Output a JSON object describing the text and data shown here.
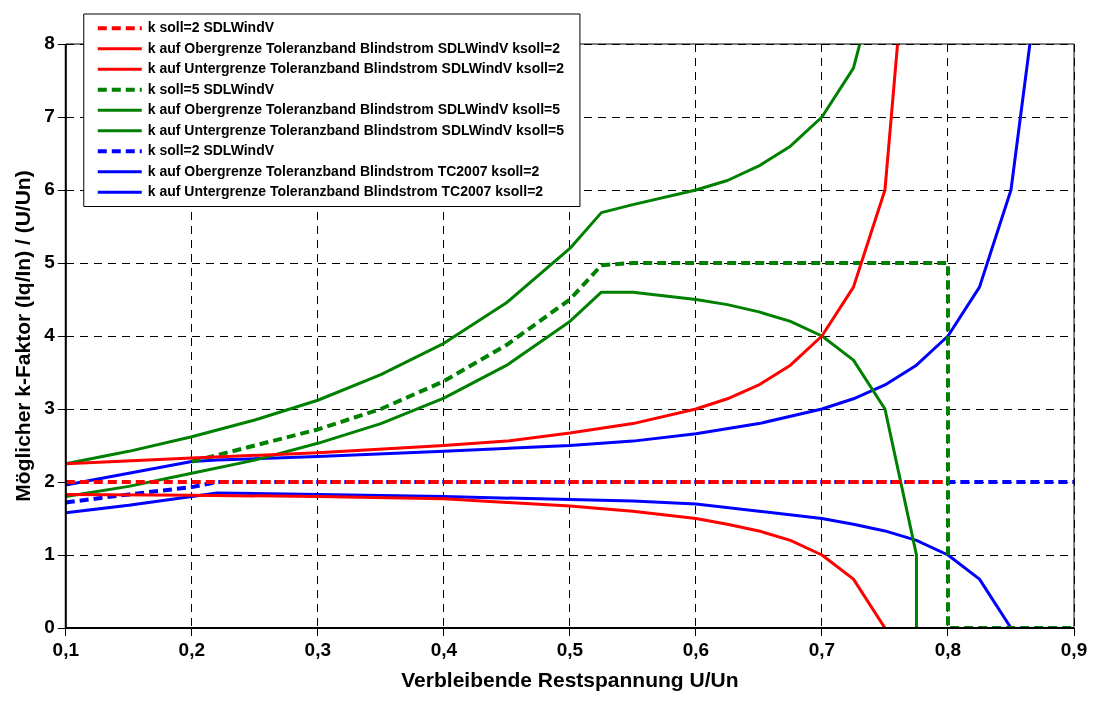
{
  "chart_data": {
    "type": "line",
    "xlabel": "Verbleibende Restspannung U/Un",
    "ylabel": "Möglicher k-Faktor (Iq/In) / (U/Un)",
    "xlim": [
      0.1,
      0.9
    ],
    "ylim": [
      0,
      8
    ],
    "xticks": [
      {
        "value": 0.1,
        "label": "0,1"
      },
      {
        "value": 0.2,
        "label": "0,2"
      },
      {
        "value": 0.3,
        "label": "0,3"
      },
      {
        "value": 0.4,
        "label": "0,4"
      },
      {
        "value": 0.5,
        "label": "0,5"
      },
      {
        "value": 0.6,
        "label": "0,6"
      },
      {
        "value": 0.7,
        "label": "0,7"
      },
      {
        "value": 0.8,
        "label": "0,8"
      },
      {
        "value": 0.9,
        "label": "0,9"
      }
    ],
    "yticks": [
      0,
      1,
      2,
      3,
      4,
      5,
      6,
      7,
      8
    ],
    "grid": true,
    "legend": "top left",
    "marker": "none",
    "series": [
      {
        "name": "k soll=2 SDLWindV",
        "color": "#ff0000",
        "line_style": "dashed",
        "x": [
          0.1,
          0.8
        ],
        "values": [
          2,
          2
        ]
      },
      {
        "name": "k auf Obergrenze Toleranzband Blindstrom SDLWindV ksoll=2",
        "color": "#ff0000",
        "line_style": "solid",
        "x": [
          0.1,
          0.2,
          0.3,
          0.4,
          0.45,
          0.5,
          0.55,
          0.6,
          0.625,
          0.65,
          0.675,
          0.7,
          0.725,
          0.75,
          0.76
        ],
        "values": [
          2.25,
          2.33,
          2.4,
          2.5,
          2.56,
          2.67,
          2.8,
          3.0,
          3.14,
          3.33,
          3.6,
          4.0,
          4.67,
          6.0,
          8.0
        ]
      },
      {
        "name": "k auf Untergrenze Toleranzband Blindstrom SDLWindV ksoll=2",
        "color": "#ff0000",
        "line_style": "solid",
        "x": [
          0.1,
          0.2,
          0.3,
          0.4,
          0.45,
          0.5,
          0.55,
          0.6,
          0.625,
          0.65,
          0.675,
          0.7,
          0.725,
          0.75
        ],
        "values": [
          1.83,
          1.82,
          1.8,
          1.77,
          1.72,
          1.67,
          1.6,
          1.5,
          1.42,
          1.33,
          1.2,
          1.0,
          0.67,
          0
        ]
      },
      {
        "name": "k soll=5 SDLWindV",
        "color": "#008000",
        "line_style": "dashed",
        "x": [
          0.2,
          0.25,
          0.3,
          0.35,
          0.4,
          0.45,
          0.5,
          0.525,
          0.55,
          0.8,
          0.8,
          0.9
        ],
        "values": [
          2.28,
          2.5,
          2.72,
          3.0,
          3.38,
          3.88,
          4.5,
          4.97,
          5.0,
          5.0,
          0,
          0
        ]
      },
      {
        "name": "k auf Obergrenze Toleranzband Blindstrom SDLWindV ksoll=5",
        "color": "#008000",
        "line_style": "solid",
        "x": [
          0.1,
          0.15,
          0.2,
          0.25,
          0.3,
          0.35,
          0.4,
          0.45,
          0.5,
          0.525,
          0.55,
          0.6,
          0.625,
          0.65,
          0.675,
          0.7,
          0.725,
          0.73
        ],
        "values": [
          2.25,
          2.42,
          2.62,
          2.85,
          3.12,
          3.47,
          3.9,
          4.46,
          5.2,
          5.69,
          5.8,
          6.0,
          6.13,
          6.33,
          6.6,
          7.0,
          7.67,
          8.0
        ]
      },
      {
        "name": "k auf Untergrenze Toleranzband Blindstrom SDLWindV ksoll=5",
        "color": "#008000",
        "line_style": "solid",
        "x": [
          0.1,
          0.15,
          0.2,
          0.25,
          0.3,
          0.35,
          0.4,
          0.45,
          0.5,
          0.525,
          0.55,
          0.6,
          0.625,
          0.65,
          0.675,
          0.7,
          0.725,
          0.75,
          0.775,
          0.775
        ],
        "values": [
          1.8,
          1.94,
          2.12,
          2.3,
          2.53,
          2.8,
          3.15,
          3.6,
          4.2,
          4.6,
          4.6,
          4.5,
          4.43,
          4.33,
          4.2,
          4.0,
          3.67,
          3.0,
          1.0,
          0
        ]
      },
      {
        "name": "k soll=2 SDLWindV",
        "color": "#0000ff",
        "line_style": "dashed",
        "x": [
          0.1,
          0.15,
          0.2,
          0.22,
          0.9
        ],
        "values": [
          1.72,
          1.83,
          1.93,
          2.0,
          2.0
        ]
      },
      {
        "name": "k auf Obergrenze Toleranzband Blindstrom TC2007 ksoll=2",
        "color": "#0000ff",
        "line_style": "solid",
        "x": [
          0.1,
          0.15,
          0.2,
          0.22,
          0.3,
          0.4,
          0.5,
          0.55,
          0.6,
          0.65,
          0.7,
          0.725,
          0.75,
          0.775,
          0.8,
          0.825,
          0.85,
          0.865
        ],
        "values": [
          1.96,
          2.12,
          2.28,
          2.3,
          2.35,
          2.42,
          2.5,
          2.56,
          2.66,
          2.8,
          3.0,
          3.14,
          3.33,
          3.6,
          4.0,
          4.67,
          6.0,
          8.0
        ]
      },
      {
        "name": "k auf Untergrenze Toleranzband Blindstrom TC2007 ksoll=2",
        "color": "#0000ff",
        "line_style": "solid",
        "x": [
          0.1,
          0.15,
          0.2,
          0.22,
          0.3,
          0.4,
          0.5,
          0.55,
          0.6,
          0.65,
          0.7,
          0.725,
          0.75,
          0.775,
          0.8,
          0.825,
          0.85
        ],
        "values": [
          1.58,
          1.68,
          1.8,
          1.85,
          1.83,
          1.8,
          1.76,
          1.74,
          1.7,
          1.6,
          1.5,
          1.42,
          1.33,
          1.2,
          1.0,
          0.67,
          0
        ]
      }
    ]
  }
}
